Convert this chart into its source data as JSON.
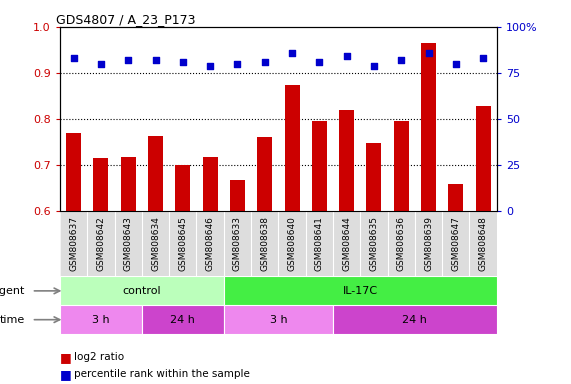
{
  "title": "GDS4807 / A_23_P173",
  "samples": [
    "GSM808637",
    "GSM808642",
    "GSM808643",
    "GSM808634",
    "GSM808645",
    "GSM808646",
    "GSM808633",
    "GSM808638",
    "GSM808640",
    "GSM808641",
    "GSM808644",
    "GSM808635",
    "GSM808636",
    "GSM808639",
    "GSM808647",
    "GSM808648"
  ],
  "log2_ratio": [
    0.77,
    0.715,
    0.718,
    0.763,
    0.7,
    0.718,
    0.668,
    0.762,
    0.873,
    0.795,
    0.82,
    0.748,
    0.795,
    0.965,
    0.66,
    0.828
  ],
  "percentile": [
    83,
    80,
    82,
    82,
    81,
    79,
    80,
    81,
    86,
    81,
    84,
    79,
    82,
    86,
    80,
    83
  ],
  "ylim_left": [
    0.6,
    1.0
  ],
  "ylim_right": [
    0,
    100
  ],
  "yticks_left": [
    0.6,
    0.7,
    0.8,
    0.9,
    1.0
  ],
  "yticks_right": [
    0,
    25,
    50,
    75,
    100
  ],
  "bar_color": "#cc0000",
  "dot_color": "#0000cc",
  "agent_groups": [
    {
      "label": "control",
      "start": 0,
      "end": 6,
      "color": "#bbffbb"
    },
    {
      "label": "IL-17C",
      "start": 6,
      "end": 16,
      "color": "#44ee44"
    }
  ],
  "time_groups": [
    {
      "label": "3 h",
      "start": 0,
      "end": 3,
      "color": "#ee88ee"
    },
    {
      "label": "24 h",
      "start": 3,
      "end": 6,
      "color": "#cc44cc"
    },
    {
      "label": "3 h",
      "start": 6,
      "end": 10,
      "color": "#ee88ee"
    },
    {
      "label": "24 h",
      "start": 10,
      "end": 16,
      "color": "#cc44cc"
    }
  ],
  "legend_bar_label": "log2 ratio",
  "legend_dot_label": "percentile rank within the sample",
  "agent_label": "agent",
  "time_label": "time",
  "tick_label_color_left": "#cc0000",
  "tick_label_color_right": "#0000cc",
  "hgrid_values": [
    0.7,
    0.8,
    0.9
  ],
  "main_bg": "#ffffff",
  "label_bg": "#dddddd"
}
